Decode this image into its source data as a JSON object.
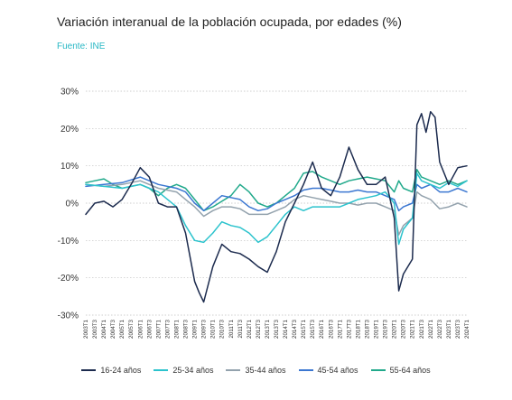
{
  "header": {
    "title": "Variación interanual de la población ocupada, por edades (%)",
    "source": "Fuente: INE"
  },
  "colors": {
    "s16_24": "#1c2b4e",
    "s25_34": "#2cc3cd",
    "s35_44": "#93a2ad",
    "s45_54": "#3b77d1",
    "s55_64": "#21a98b",
    "grid": "#bfbfbf"
  },
  "chart_data": {
    "type": "line",
    "title": "Variación interanual de la población ocupada, por edades (%)",
    "ylim": [
      -30,
      30
    ],
    "y_ticks": [
      30,
      20,
      10,
      0,
      -10,
      -20,
      -30
    ],
    "y_tick_labels": [
      "30%",
      "20%",
      "10%",
      "0%",
      "-10%",
      "-20%",
      "-30%"
    ],
    "x_tick_labels": [
      "2003T1",
      "2003T3",
      "2004T1",
      "2004T3",
      "2005T1",
      "2005T3",
      "2006T1",
      "2006T3",
      "2007T1",
      "2007T3",
      "2008T1",
      "2008T3",
      "2009T1",
      "2009T3",
      "2010T1",
      "2010T3",
      "2011T1",
      "2011T3",
      "2012T1",
      "2012T3",
      "2013T1",
      "2013T3",
      "2014T1",
      "2014T3",
      "2015T1",
      "2015T3",
      "2016T1",
      "2016T3",
      "2017T1",
      "2017T3",
      "2018T1",
      "2018T3",
      "2019T1",
      "2019T3",
      "2020T1",
      "2020T3",
      "2021T1",
      "2021T3",
      "2022T1",
      "2022T3",
      "2023T1",
      "2023T3",
      "2024T1"
    ],
    "grid": "horizontal",
    "legend_position": "bottom",
    "series": [
      {
        "name": "16-24 años",
        "values": [
          {
            "x": 2003.0,
            "y": -3
          },
          {
            "x": 2003.5,
            "y": 0
          },
          {
            "x": 2004.0,
            "y": 0.5
          },
          {
            "x": 2004.5,
            "y": -1
          },
          {
            "x": 2005.0,
            "y": 1
          },
          {
            "x": 2005.5,
            "y": 5
          },
          {
            "x": 2006.0,
            "y": 9.5
          },
          {
            "x": 2006.5,
            "y": 7
          },
          {
            "x": 2007.0,
            "y": 0
          },
          {
            "x": 2007.5,
            "y": -1
          },
          {
            "x": 2008.0,
            "y": -1
          },
          {
            "x": 2008.5,
            "y": -8
          },
          {
            "x": 2009.0,
            "y": -21
          },
          {
            "x": 2009.25,
            "y": -24
          },
          {
            "x": 2009.5,
            "y": -26.5
          },
          {
            "x": 2010.0,
            "y": -17
          },
          {
            "x": 2010.5,
            "y": -11
          },
          {
            "x": 2011.0,
            "y": -13
          },
          {
            "x": 2011.5,
            "y": -13.5
          },
          {
            "x": 2012.0,
            "y": -15
          },
          {
            "x": 2012.5,
            "y": -17
          },
          {
            "x": 2013.0,
            "y": -18.5
          },
          {
            "x": 2013.5,
            "y": -13
          },
          {
            "x": 2014.0,
            "y": -5
          },
          {
            "x": 2014.5,
            "y": 0
          },
          {
            "x": 2015.0,
            "y": 5
          },
          {
            "x": 2015.5,
            "y": 11
          },
          {
            "x": 2016.0,
            "y": 4
          },
          {
            "x": 2016.5,
            "y": 2
          },
          {
            "x": 2017.0,
            "y": 7
          },
          {
            "x": 2017.5,
            "y": 15
          },
          {
            "x": 2018.0,
            "y": 9
          },
          {
            "x": 2018.5,
            "y": 5
          },
          {
            "x": 2019.0,
            "y": 5
          },
          {
            "x": 2019.5,
            "y": 7
          },
          {
            "x": 2020.0,
            "y": -4
          },
          {
            "x": 2020.25,
            "y": -23.5
          },
          {
            "x": 2020.5,
            "y": -19
          },
          {
            "x": 2021.0,
            "y": -15
          },
          {
            "x": 2021.25,
            "y": 21
          },
          {
            "x": 2021.5,
            "y": 24
          },
          {
            "x": 2021.75,
            "y": 19
          },
          {
            "x": 2022.0,
            "y": 24.5
          },
          {
            "x": 2022.25,
            "y": 23
          },
          {
            "x": 2022.5,
            "y": 11
          },
          {
            "x": 2023.0,
            "y": 5
          },
          {
            "x": 2023.5,
            "y": 9.5
          },
          {
            "x": 2024.0,
            "y": 10
          }
        ]
      },
      {
        "name": "25-34 años",
        "values": [
          {
            "x": 2003.0,
            "y": 5
          },
          {
            "x": 2004.0,
            "y": 4.5
          },
          {
            "x": 2005.0,
            "y": 4
          },
          {
            "x": 2006.0,
            "y": 5
          },
          {
            "x": 2007.0,
            "y": 3
          },
          {
            "x": 2008.0,
            "y": -1
          },
          {
            "x": 2008.5,
            "y": -6
          },
          {
            "x": 2009.0,
            "y": -10
          },
          {
            "x": 2009.5,
            "y": -10.5
          },
          {
            "x": 2010.0,
            "y": -8
          },
          {
            "x": 2010.5,
            "y": -5
          },
          {
            "x": 2011.0,
            "y": -6
          },
          {
            "x": 2011.5,
            "y": -6.5
          },
          {
            "x": 2012.0,
            "y": -8
          },
          {
            "x": 2012.5,
            "y": -10.5
          },
          {
            "x": 2013.0,
            "y": -9
          },
          {
            "x": 2013.5,
            "y": -6
          },
          {
            "x": 2014.0,
            "y": -3
          },
          {
            "x": 2014.5,
            "y": -1
          },
          {
            "x": 2015.0,
            "y": -2
          },
          {
            "x": 2015.5,
            "y": -1
          },
          {
            "x": 2016.0,
            "y": -1
          },
          {
            "x": 2016.5,
            "y": -1
          },
          {
            "x": 2017.0,
            "y": -1
          },
          {
            "x": 2017.5,
            "y": 0
          },
          {
            "x": 2018.0,
            "y": 1
          },
          {
            "x": 2018.5,
            "y": 1.5
          },
          {
            "x": 2019.0,
            "y": 2
          },
          {
            "x": 2019.5,
            "y": 3
          },
          {
            "x": 2020.0,
            "y": 0
          },
          {
            "x": 2020.25,
            "y": -11
          },
          {
            "x": 2020.5,
            "y": -7
          },
          {
            "x": 2021.0,
            "y": -4
          },
          {
            "x": 2021.25,
            "y": 8
          },
          {
            "x": 2021.5,
            "y": 6
          },
          {
            "x": 2022.0,
            "y": 5
          },
          {
            "x": 2022.5,
            "y": 4
          },
          {
            "x": 2023.0,
            "y": 5.5
          },
          {
            "x": 2023.5,
            "y": 4.5
          },
          {
            "x": 2024.0,
            "y": 6
          }
        ]
      },
      {
        "name": "35-44 años",
        "values": [
          {
            "x": 2003.0,
            "y": 5
          },
          {
            "x": 2004.0,
            "y": 4.5
          },
          {
            "x": 2005.0,
            "y": 5
          },
          {
            "x": 2006.0,
            "y": 6
          },
          {
            "x": 2007.0,
            "y": 4
          },
          {
            "x": 2008.0,
            "y": 3
          },
          {
            "x": 2008.5,
            "y": 1
          },
          {
            "x": 2009.0,
            "y": -1
          },
          {
            "x": 2009.5,
            "y": -3.5
          },
          {
            "x": 2010.0,
            "y": -2
          },
          {
            "x": 2010.5,
            "y": -1
          },
          {
            "x": 2011.0,
            "y": -1
          },
          {
            "x": 2011.5,
            "y": -1.5
          },
          {
            "x": 2012.0,
            "y": -3
          },
          {
            "x": 2012.5,
            "y": -3
          },
          {
            "x": 2013.0,
            "y": -3
          },
          {
            "x": 2013.5,
            "y": -2
          },
          {
            "x": 2014.0,
            "y": -1
          },
          {
            "x": 2014.5,
            "y": 1
          },
          {
            "x": 2015.0,
            "y": 2
          },
          {
            "x": 2015.5,
            "y": 1.5
          },
          {
            "x": 2016.0,
            "y": 1
          },
          {
            "x": 2016.5,
            "y": 0.5
          },
          {
            "x": 2017.0,
            "y": 0
          },
          {
            "x": 2017.5,
            "y": 0
          },
          {
            "x": 2018.0,
            "y": -0.5
          },
          {
            "x": 2018.5,
            "y": 0
          },
          {
            "x": 2019.0,
            "y": 0
          },
          {
            "x": 2019.5,
            "y": -1
          },
          {
            "x": 2020.0,
            "y": -2
          },
          {
            "x": 2020.25,
            "y": -8.5
          },
          {
            "x": 2020.5,
            "y": -6
          },
          {
            "x": 2021.0,
            "y": -4
          },
          {
            "x": 2021.25,
            "y": 3
          },
          {
            "x": 2021.5,
            "y": 2
          },
          {
            "x": 2022.0,
            "y": 1
          },
          {
            "x": 2022.5,
            "y": -1.5
          },
          {
            "x": 2023.0,
            "y": -1
          },
          {
            "x": 2023.5,
            "y": 0
          },
          {
            "x": 2024.0,
            "y": -1
          }
        ]
      },
      {
        "name": "45-54 años",
        "values": [
          {
            "x": 2003.0,
            "y": 4.5
          },
          {
            "x": 2004.0,
            "y": 5
          },
          {
            "x": 2005.0,
            "y": 5.5
          },
          {
            "x": 2006.0,
            "y": 7
          },
          {
            "x": 2007.0,
            "y": 5
          },
          {
            "x": 2008.0,
            "y": 4
          },
          {
            "x": 2008.5,
            "y": 3
          },
          {
            "x": 2009.0,
            "y": 0
          },
          {
            "x": 2009.5,
            "y": -2
          },
          {
            "x": 2010.0,
            "y": 0
          },
          {
            "x": 2010.5,
            "y": 2
          },
          {
            "x": 2011.0,
            "y": 1.5
          },
          {
            "x": 2011.5,
            "y": 1
          },
          {
            "x": 2012.0,
            "y": -1
          },
          {
            "x": 2012.5,
            "y": -2
          },
          {
            "x": 2013.0,
            "y": -1.5
          },
          {
            "x": 2013.5,
            "y": 0
          },
          {
            "x": 2014.0,
            "y": 1
          },
          {
            "x": 2014.5,
            "y": 2
          },
          {
            "x": 2015.0,
            "y": 3.5
          },
          {
            "x": 2015.5,
            "y": 4
          },
          {
            "x": 2016.0,
            "y": 4
          },
          {
            "x": 2016.5,
            "y": 3.5
          },
          {
            "x": 2017.0,
            "y": 3
          },
          {
            "x": 2017.5,
            "y": 3
          },
          {
            "x": 2018.0,
            "y": 3.5
          },
          {
            "x": 2018.5,
            "y": 3
          },
          {
            "x": 2019.0,
            "y": 3
          },
          {
            "x": 2019.5,
            "y": 2
          },
          {
            "x": 2020.0,
            "y": 1
          },
          {
            "x": 2020.25,
            "y": -2
          },
          {
            "x": 2020.5,
            "y": -1
          },
          {
            "x": 2021.0,
            "y": 0
          },
          {
            "x": 2021.25,
            "y": 5
          },
          {
            "x": 2021.5,
            "y": 4
          },
          {
            "x": 2022.0,
            "y": 5
          },
          {
            "x": 2022.5,
            "y": 3
          },
          {
            "x": 2023.0,
            "y": 3
          },
          {
            "x": 2023.5,
            "y": 4
          },
          {
            "x": 2024.0,
            "y": 3
          }
        ]
      },
      {
        "name": "55-64 años",
        "values": [
          {
            "x": 2003.0,
            "y": 5.5
          },
          {
            "x": 2003.5,
            "y": 6
          },
          {
            "x": 2004.0,
            "y": 6.5
          },
          {
            "x": 2004.5,
            "y": 5
          },
          {
            "x": 2005.0,
            "y": 4
          },
          {
            "x": 2005.5,
            "y": 4.5
          },
          {
            "x": 2006.0,
            "y": 5
          },
          {
            "x": 2006.5,
            "y": 4
          },
          {
            "x": 2007.0,
            "y": 2
          },
          {
            "x": 2007.5,
            "y": 4
          },
          {
            "x": 2008.0,
            "y": 5
          },
          {
            "x": 2008.5,
            "y": 4
          },
          {
            "x": 2009.0,
            "y": 1
          },
          {
            "x": 2009.5,
            "y": -2
          },
          {
            "x": 2010.0,
            "y": -1
          },
          {
            "x": 2010.5,
            "y": 0.5
          },
          {
            "x": 2011.0,
            "y": 2
          },
          {
            "x": 2011.5,
            "y": 5
          },
          {
            "x": 2012.0,
            "y": 3
          },
          {
            "x": 2012.5,
            "y": 0
          },
          {
            "x": 2013.0,
            "y": -1
          },
          {
            "x": 2013.5,
            "y": 0
          },
          {
            "x": 2014.0,
            "y": 2
          },
          {
            "x": 2014.5,
            "y": 4
          },
          {
            "x": 2015.0,
            "y": 8
          },
          {
            "x": 2015.5,
            "y": 8.5
          },
          {
            "x": 2016.0,
            "y": 7
          },
          {
            "x": 2016.5,
            "y": 6
          },
          {
            "x": 2017.0,
            "y": 5
          },
          {
            "x": 2017.5,
            "y": 6
          },
          {
            "x": 2018.0,
            "y": 6.5
          },
          {
            "x": 2018.5,
            "y": 7
          },
          {
            "x": 2019.0,
            "y": 6.5
          },
          {
            "x": 2019.5,
            "y": 6
          },
          {
            "x": 2020.0,
            "y": 3
          },
          {
            "x": 2020.25,
            "y": 6
          },
          {
            "x": 2020.5,
            "y": 4
          },
          {
            "x": 2021.0,
            "y": 3
          },
          {
            "x": 2021.25,
            "y": 9
          },
          {
            "x": 2021.5,
            "y": 7
          },
          {
            "x": 2022.0,
            "y": 6
          },
          {
            "x": 2022.5,
            "y": 5
          },
          {
            "x": 2023.0,
            "y": 6
          },
          {
            "x": 2023.5,
            "y": 5
          },
          {
            "x": 2024.0,
            "y": 6
          }
        ]
      }
    ]
  }
}
